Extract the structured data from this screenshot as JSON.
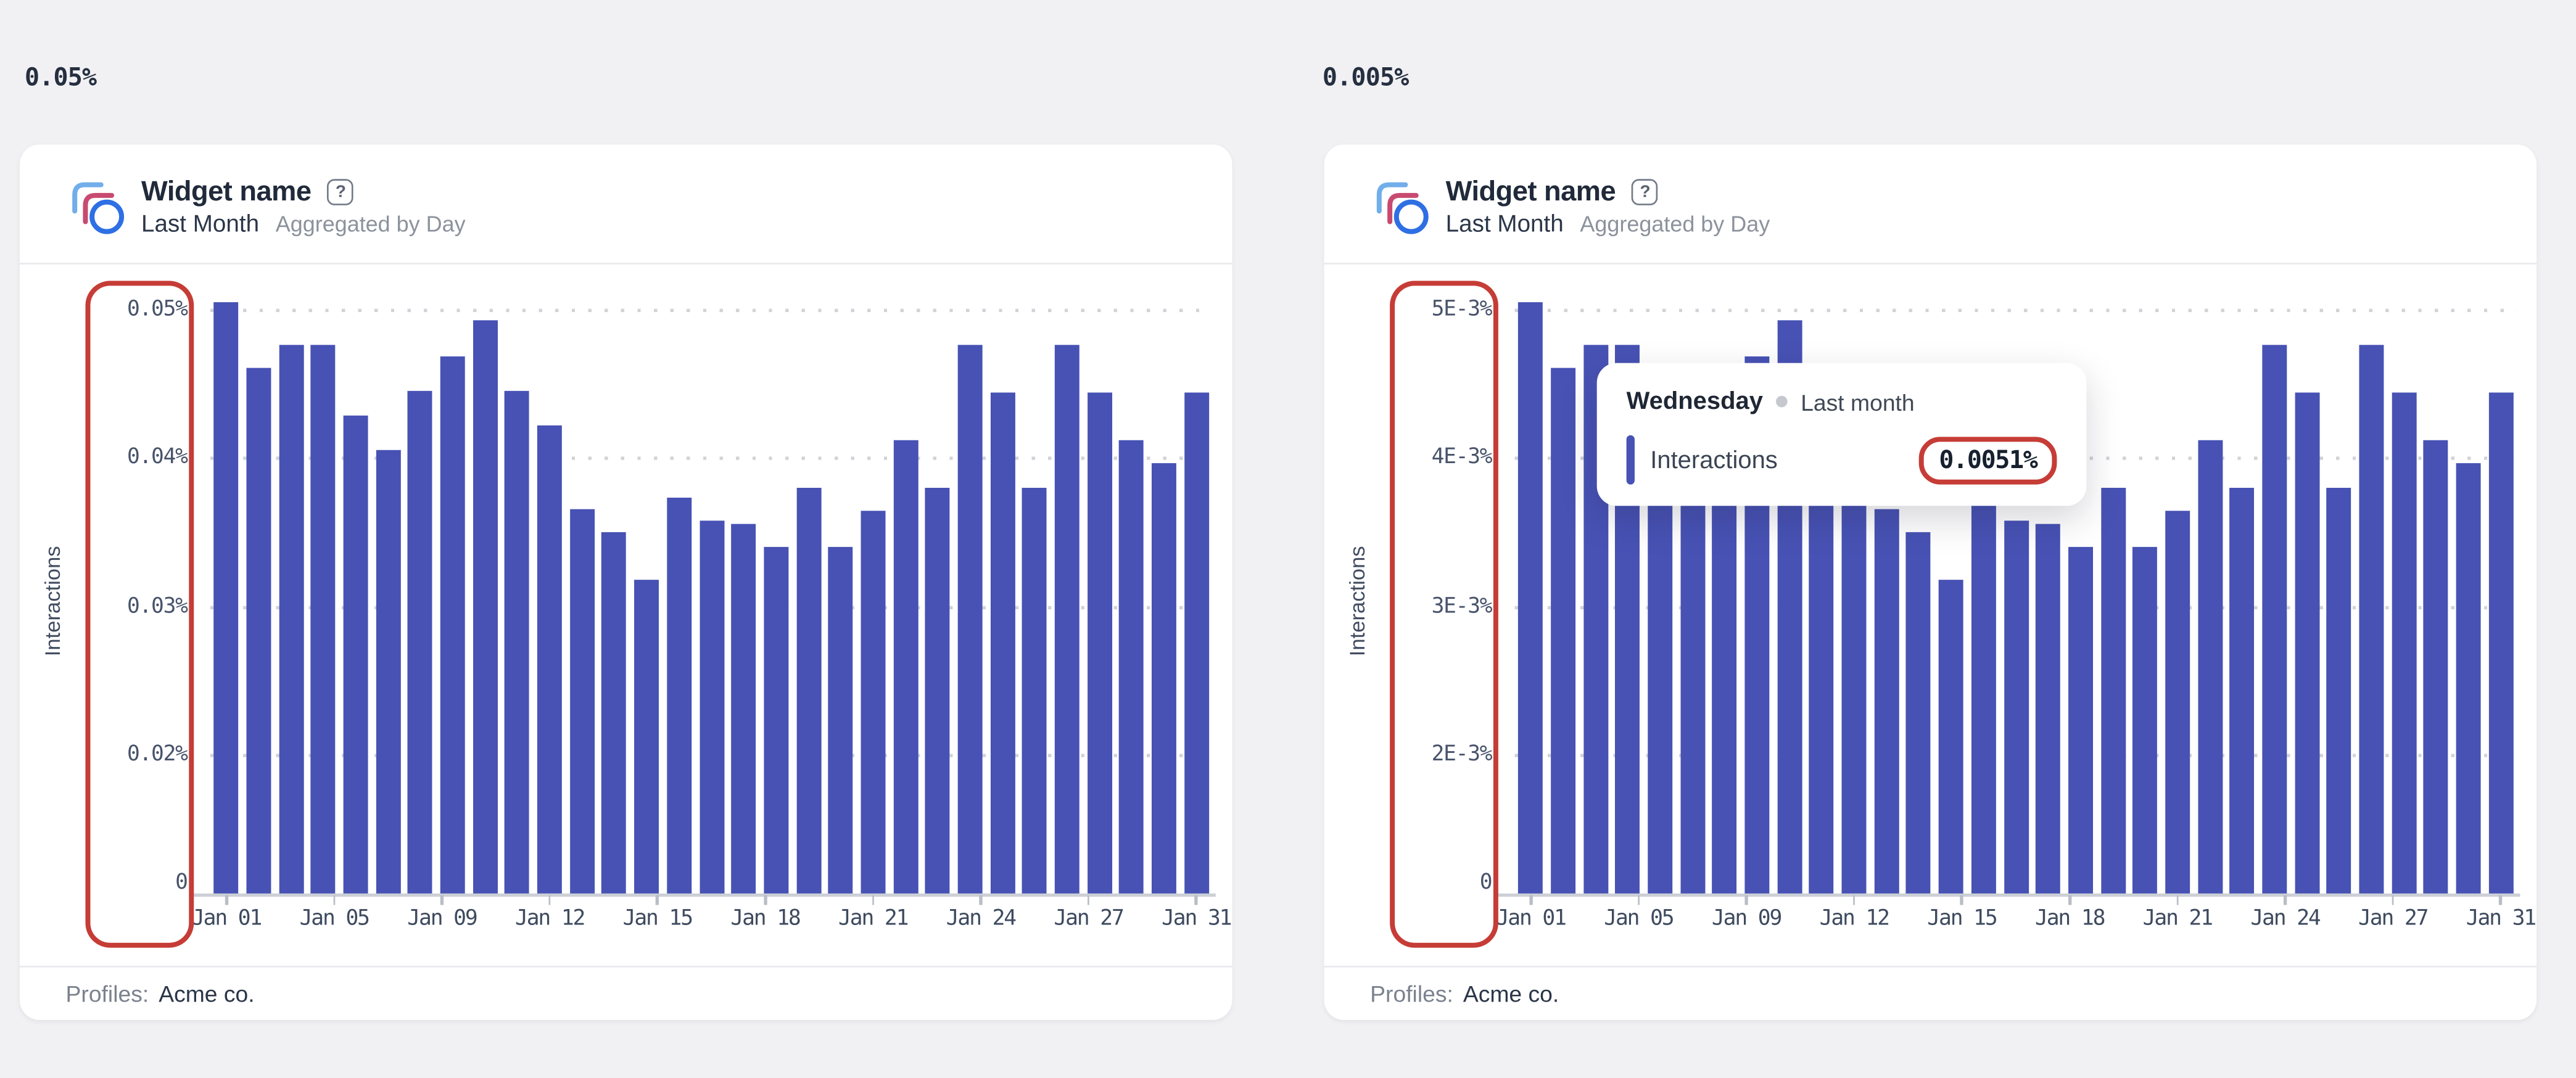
{
  "page": {
    "background": "#f1f1f4"
  },
  "annotation_color": "#c63c36",
  "bar_color": "#4752b4",
  "metric_labels": [
    {
      "text": "0.05%"
    },
    {
      "text": "0.005%"
    }
  ],
  "tooltip": {
    "title": "Wednesday",
    "context": "Last month",
    "series": "Interactions",
    "value": "0.0051%"
  },
  "charts": [
    {
      "title": "Widget name",
      "help_icon": "?",
      "period": "Last Month",
      "aggregation": "Aggregated by Day",
      "y_axis_title": "Interactions",
      "footer_label": "Profiles:",
      "footer_value": "Acme co.",
      "y_ticks": [
        "0.05%",
        "0.04%",
        "0.03%",
        "0.02%",
        "0"
      ],
      "x_ticks": [
        "Jan 01",
        "Jan 05",
        "Jan 09",
        "Jan 12",
        "Jan 15",
        "Jan 18",
        "Jan 21",
        "Jan 24",
        "Jan 27",
        "Jan 31"
      ],
      "chart_data": {
        "type": "bar",
        "title": "Widget name — Interactions, Last Month, Aggregated by Day",
        "xlabel": "",
        "ylabel": "Interactions",
        "unit": "%",
        "ylim": [
          0,
          0.05
        ],
        "grid": "dotted-horizontal",
        "legend_position": "none",
        "categories": [
          "Jan 01",
          "Jan 02",
          "Jan 03",
          "Jan 04",
          "Jan 05",
          "Jan 06",
          "Jan 07",
          "Jan 08",
          "Jan 09",
          "Jan 10",
          "Jan 11",
          "Jan 12",
          "Jan 13",
          "Jan 14",
          "Jan 15",
          "Jan 16",
          "Jan 17",
          "Jan 18",
          "Jan 19",
          "Jan 20",
          "Jan 21",
          "Jan 22",
          "Jan 23",
          "Jan 24",
          "Jan 25",
          "Jan 26",
          "Jan 27",
          "Jan 28",
          "Jan 29",
          "Jan 30",
          "Jan 31"
        ],
        "values": [
          0.0505,
          0.0461,
          0.0477,
          0.0477,
          0.0429,
          0.0406,
          0.0446,
          0.0469,
          0.0493,
          0.0446,
          0.0422,
          0.0366,
          0.0351,
          0.0318,
          0.0374,
          0.0358,
          0.0356,
          0.0341,
          0.038,
          0.0341,
          0.0365,
          0.0413,
          0.038,
          0.0477,
          0.0445,
          0.038,
          0.0477,
          0.0445,
          0.0413,
          0.0397,
          0.0445
        ]
      }
    },
    {
      "title": "Widget name",
      "help_icon": "?",
      "period": "Last Month",
      "aggregation": "Aggregated by Day",
      "y_axis_title": "Interactions",
      "footer_label": "Profiles:",
      "footer_value": "Acme co.",
      "y_ticks": [
        "5E-3%",
        "4E-3%",
        "3E-3%",
        "2E-3%",
        "0"
      ],
      "x_ticks": [
        "Jan 01",
        "Jan 05",
        "Jan 09",
        "Jan 12",
        "Jan 15",
        "Jan 18",
        "Jan 21",
        "Jan 24",
        "Jan 27",
        "Jan 31"
      ],
      "chart_data": {
        "type": "bar",
        "title": "Widget name — Interactions, Last Month, Aggregated by Day",
        "xlabel": "",
        "ylabel": "Interactions",
        "unit": "%",
        "ylim": [
          0,
          0.005
        ],
        "grid": "dotted-horizontal",
        "legend_position": "none",
        "categories": [
          "Jan 01",
          "Jan 02",
          "Jan 03",
          "Jan 04",
          "Jan 05",
          "Jan 06",
          "Jan 07",
          "Jan 08",
          "Jan 09",
          "Jan 10",
          "Jan 11",
          "Jan 12",
          "Jan 13",
          "Jan 14",
          "Jan 15",
          "Jan 16",
          "Jan 17",
          "Jan 18",
          "Jan 19",
          "Jan 20",
          "Jan 21",
          "Jan 22",
          "Jan 23",
          "Jan 24",
          "Jan 25",
          "Jan 26",
          "Jan 27",
          "Jan 28",
          "Jan 29",
          "Jan 30",
          "Jan 31"
        ],
        "values": [
          0.00505,
          0.00461,
          0.00477,
          0.00477,
          0.00429,
          0.00406,
          0.00446,
          0.00469,
          0.00493,
          0.00446,
          0.00422,
          0.00366,
          0.00351,
          0.00318,
          0.00374,
          0.00358,
          0.00356,
          0.00341,
          0.0038,
          0.00341,
          0.00365,
          0.00413,
          0.0038,
          0.00477,
          0.00445,
          0.0038,
          0.00477,
          0.00445,
          0.00413,
          0.00397,
          0.00445
        ]
      }
    }
  ]
}
